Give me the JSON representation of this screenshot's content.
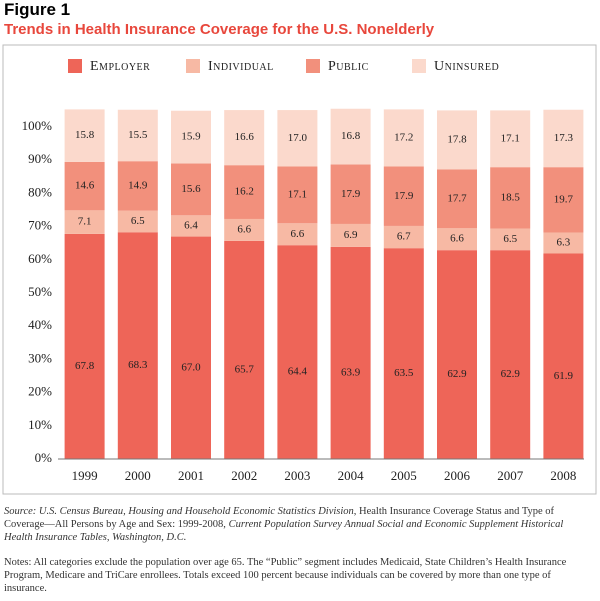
{
  "chart_data": {
    "type": "stacked_bar",
    "title": "Figure 1",
    "subtitle": "Trends in Health Insurance Coverage for the U.S. Nonelderly",
    "categories": [
      "1999",
      "2000",
      "2001",
      "2002",
      "2003",
      "2004",
      "2005",
      "2006",
      "2007",
      "2008"
    ],
    "series": [
      {
        "name": "Employer",
        "color": "#ee6558",
        "values": [
          67.8,
          68.3,
          67.0,
          65.7,
          64.4,
          63.9,
          63.5,
          62.9,
          62.9,
          61.9
        ],
        "value_labels": [
          "67.8",
          "68.3",
          "67.0",
          "65.7",
          "64.4",
          "63.9",
          "63.5",
          "62.9",
          "62.9",
          "61.9"
        ]
      },
      {
        "name": "Individual",
        "color": "#f7b9a4",
        "values": [
          7.1,
          6.5,
          6.4,
          6.6,
          6.6,
          6.9,
          6.7,
          6.6,
          6.5,
          6.3
        ],
        "value_labels": [
          "7.1",
          "6.5",
          "6.4",
          "6.6",
          "6.6",
          "6.9",
          "6.7",
          "6.6",
          "6.5",
          "6.3"
        ]
      },
      {
        "name": "Public",
        "color": "#f2907c",
        "values": [
          14.6,
          14.9,
          15.6,
          16.2,
          17.1,
          17.9,
          17.9,
          17.7,
          18.5,
          19.7
        ],
        "value_labels": [
          "14.6",
          "14.9",
          "15.6",
          "16.2",
          "17.1",
          "17.9",
          "17.9",
          "17.7",
          "18.5",
          "19.7"
        ]
      },
      {
        "name": "Uninsured",
        "color": "#fbd9cc",
        "values": [
          15.8,
          15.5,
          15.9,
          16.6,
          17.0,
          16.8,
          17.2,
          17.8,
          17.1,
          17.3
        ],
        "value_labels": [
          "15.8",
          "15.5",
          "15.9",
          "16.6",
          "17.0",
          "16.8",
          "17.2",
          "17.8",
          "17.1",
          "17.3"
        ]
      }
    ],
    "ylim": [
      0,
      105
    ],
    "yticks": [
      {
        "value": 0,
        "label": "0%"
      },
      {
        "value": 10,
        "label": "10%"
      },
      {
        "value": 20,
        "label": "20%"
      },
      {
        "value": 30,
        "label": "30%"
      },
      {
        "value": 40,
        "label": "40%"
      },
      {
        "value": 50,
        "label": "50%"
      },
      {
        "value": 60,
        "label": "60%"
      },
      {
        "value": 70,
        "label": "70%"
      },
      {
        "value": 80,
        "label": "80%"
      },
      {
        "value": 90,
        "label": "90%"
      },
      {
        "value": 100,
        "label": "100%"
      }
    ],
    "legend": "top",
    "source": [
      "Source: U.S. Census Bureau, Housing and Household Economic Statistics Division",
      ", Health Insurance Coverage Status and Type of Coverage—All Persons by Age and Sex: 1999-2008, ",
      "Current Population Survey Annual Social and Economic Supplement Historical Health Insurance Tables, Washington, D.C."
    ],
    "notes": "Notes: All categories exclude the population over age 65. The “Public” segment includes Medicaid, State Children’s Health Insurance Program, Medicare and TriCare enrollees. Totals exceed 100 percent because individuals can be covered by more than one type of insurance."
  }
}
